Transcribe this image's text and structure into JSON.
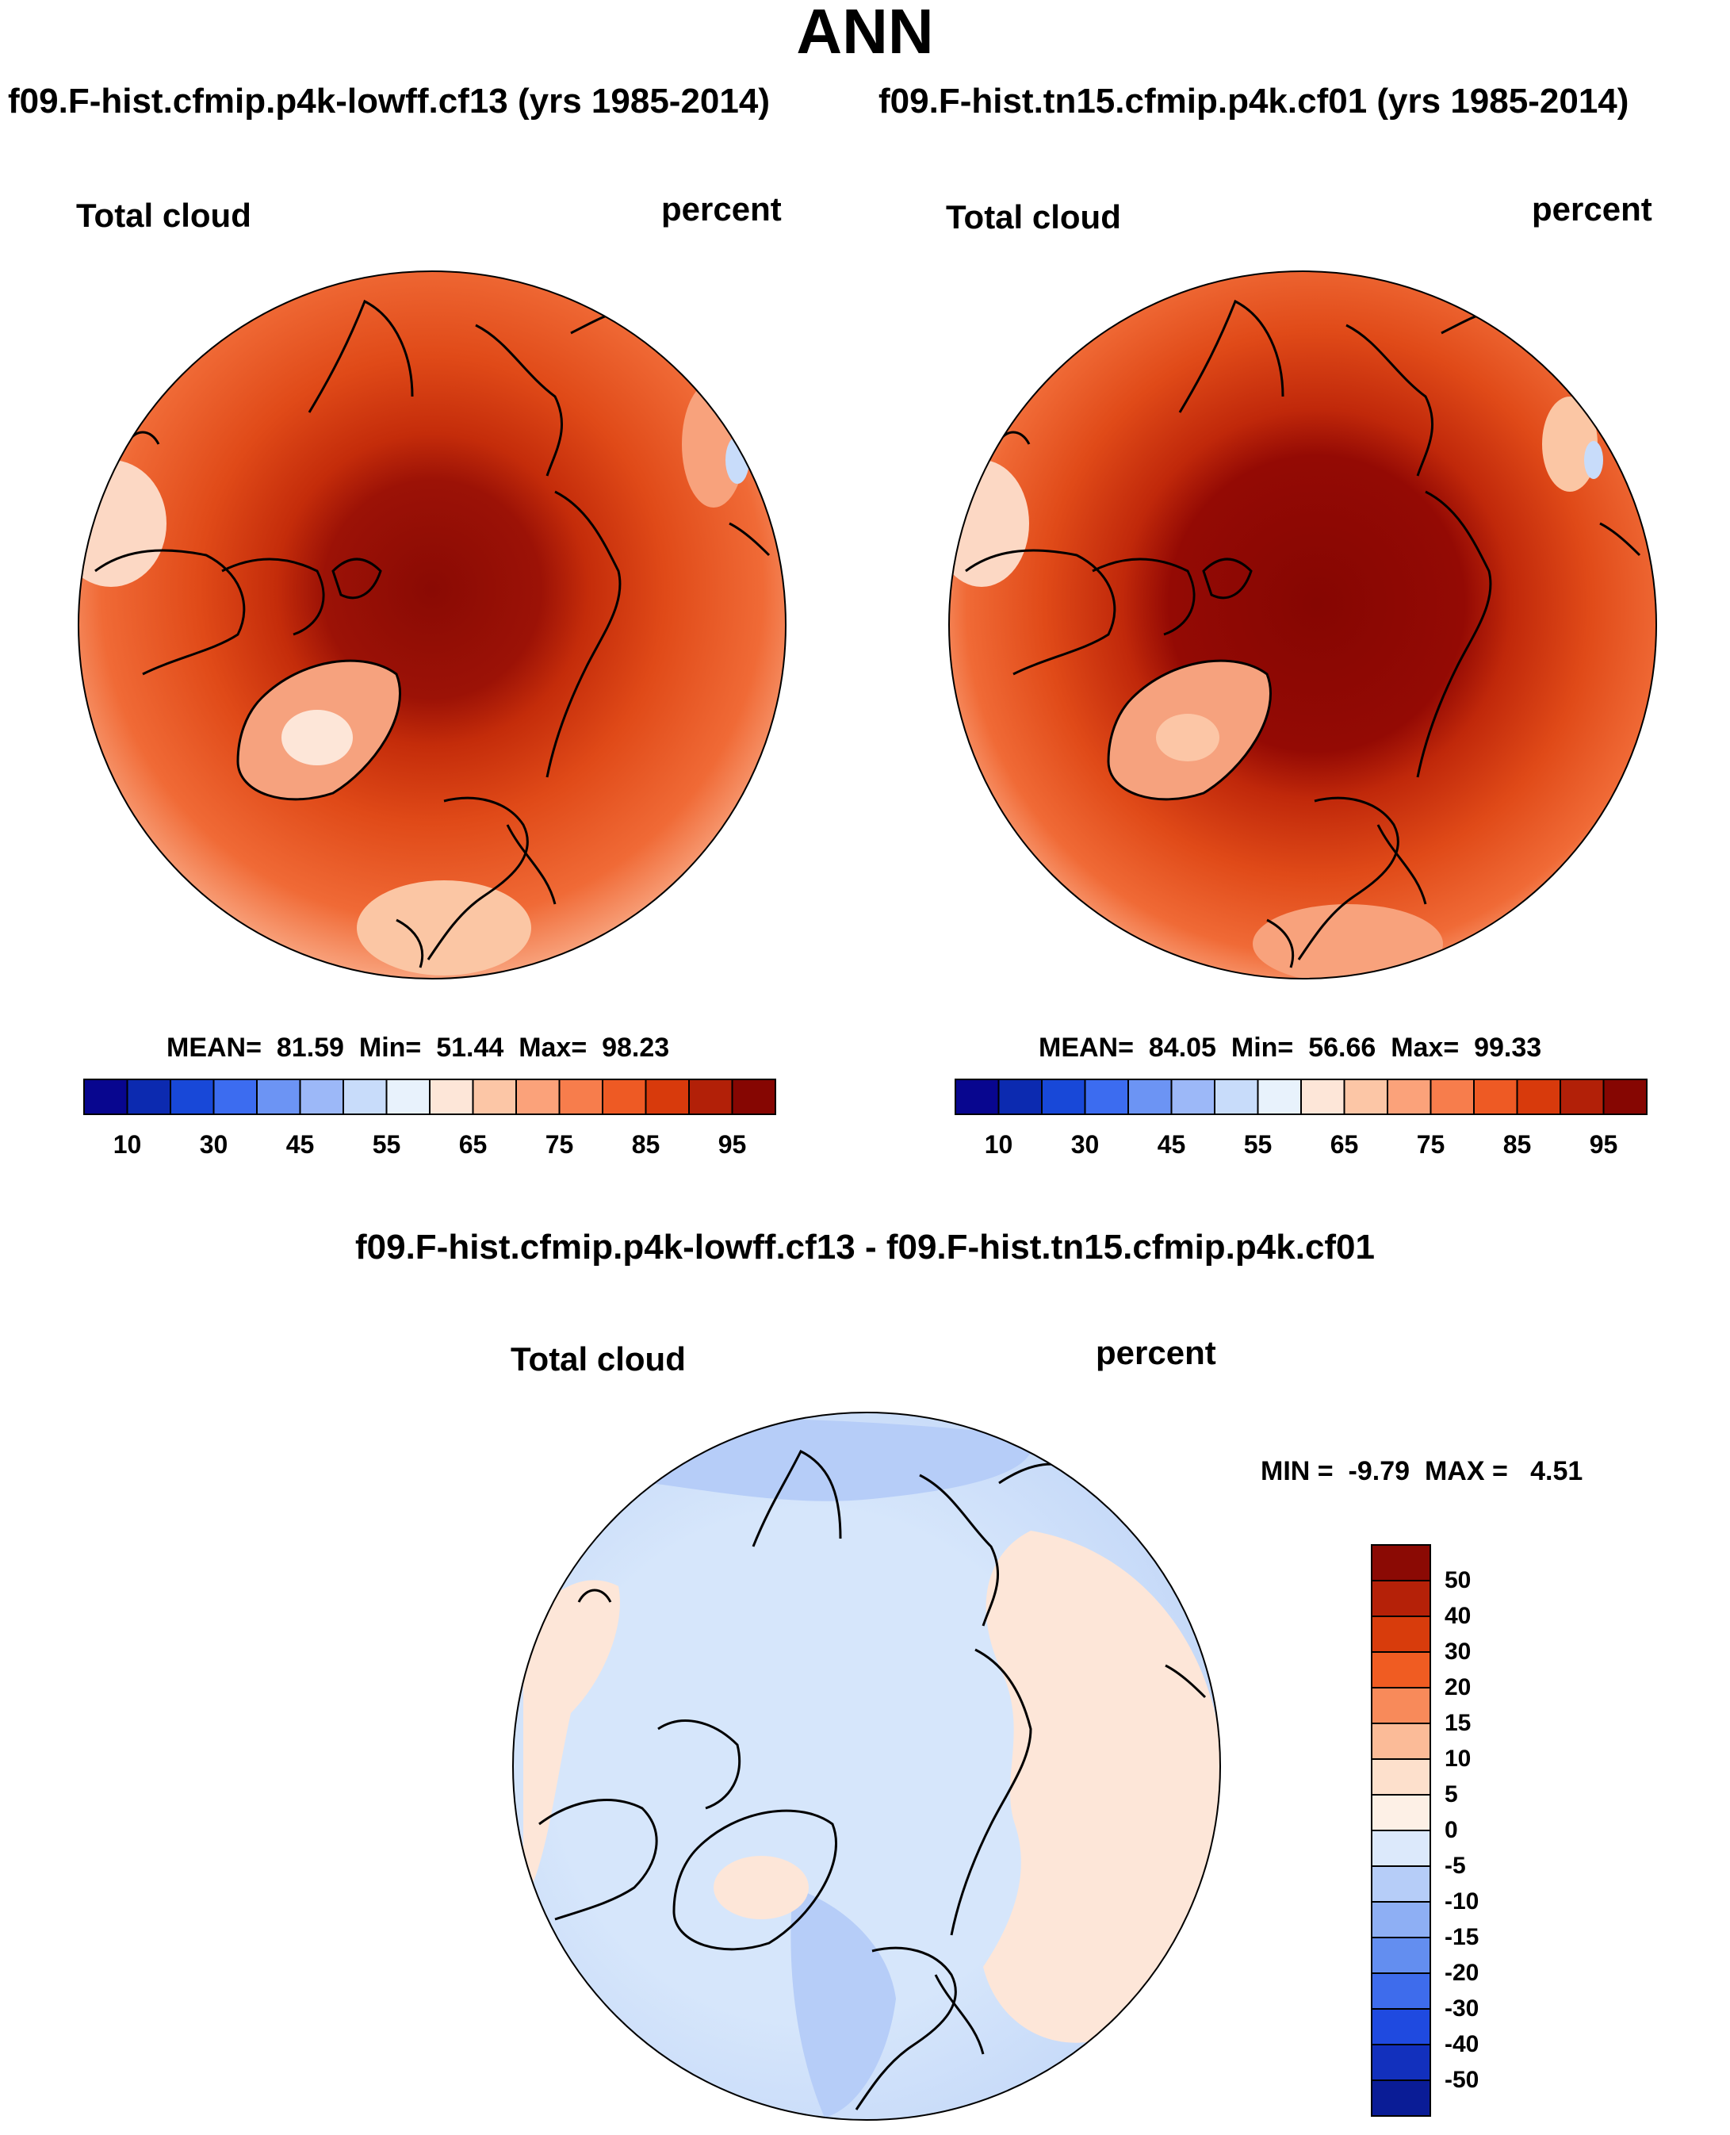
{
  "title": "ANN",
  "panels": [
    {
      "case_title": "f09.F-hist.cfmip.p4k-lowff.cf13 (yrs 1985-2014)",
      "field": "Total cloud",
      "units": "percent",
      "stats": {
        "mean_label": "MEAN=",
        "mean": "81.59",
        "min_label": "Min=",
        "min": "51.44",
        "max_label": "Max=",
        "max": "98.23"
      }
    },
    {
      "case_title": "f09.F-hist.tn15.cfmip.p4k.cf01 (yrs 1985-2014)",
      "field": "Total cloud",
      "units": "percent",
      "stats": {
        "mean_label": "MEAN=",
        "mean": "84.05",
        "min_label": "Min=",
        "min": "56.66",
        "max_label": "Max=",
        "max": "99.33"
      }
    }
  ],
  "colorbar": {
    "colors": [
      "#08068f",
      "#0c2ab0",
      "#1848d8",
      "#3c6cf0",
      "#6c94f4",
      "#9cb8f8",
      "#c8dcfa",
      "#e8f2fc",
      "#fde6d8",
      "#fcc6a6",
      "#fba27a",
      "#f77d4c",
      "#ee5a24",
      "#d83a0c",
      "#b22008",
      "#860602"
    ],
    "labels": [
      "10",
      "30",
      "45",
      "55",
      "65",
      "75",
      "85",
      "95"
    ]
  },
  "difference": {
    "title": "f09.F-hist.cfmip.p4k-lowff.cf13 - f09.F-hist.tn15.cfmip.p4k.cf01",
    "field": "Total cloud",
    "units": "percent",
    "min_label": "MIN =",
    "min": "-9.79",
    "max_label": "MAX =",
    "max": "4.51",
    "colorbar": {
      "colors_top_to_bottom": [
        "#8b0a04",
        "#b52108",
        "#d83c0c",
        "#f05c22",
        "#f88a5a",
        "#fbbb98",
        "#fde0cc",
        "#fdf0e6",
        "#dce9fb",
        "#b6cdf8",
        "#8eaff4",
        "#638ef0",
        "#3e6cec",
        "#1f4ae0",
        "#1230bd",
        "#0a1c96"
      ],
      "labels": [
        "50",
        "40",
        "30",
        "20",
        "15",
        "10",
        "5",
        "0",
        "-5",
        "-10",
        "-15",
        "-20",
        "-30",
        "-40",
        "-50"
      ]
    }
  }
}
